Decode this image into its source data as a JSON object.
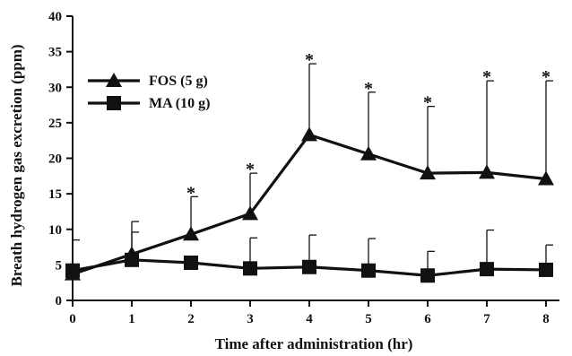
{
  "chart_data": {
    "type": "line",
    "xlabel": "Time after administration (hr)",
    "ylabel": "Breath hydrogen gas excretion (ppm)",
    "xlim": [
      0,
      8
    ],
    "ylim": [
      0,
      40
    ],
    "x_ticks": [
      "0",
      "1",
      "2",
      "3",
      "4",
      "5",
      "6",
      "7",
      "8"
    ],
    "y_ticks": [
      "0",
      "5",
      "10",
      "15",
      "20",
      "25",
      "30",
      "35",
      "40"
    ],
    "x": [
      0,
      1,
      2,
      3,
      4,
      5,
      6,
      7,
      8
    ],
    "grid": false,
    "legend_position": "top-left",
    "series": [
      {
        "name": "FOS (5 g)",
        "marker": "triangle",
        "color": "#111111",
        "values": [
          3.7,
          6.5,
          9.3,
          12.2,
          23.3,
          20.6,
          17.9,
          18.0,
          17.1
        ],
        "error_upper": [
          4.7,
          11.1,
          14.6,
          17.9,
          33.3,
          29.3,
          27.3,
          30.9,
          30.9
        ],
        "significant": [
          false,
          false,
          true,
          true,
          true,
          true,
          true,
          true,
          true
        ],
        "significance_marker": "*"
      },
      {
        "name": "MA (10 g)",
        "marker": "square",
        "color": "#111111",
        "values": [
          4.2,
          5.7,
          5.3,
          4.5,
          4.7,
          4.2,
          3.5,
          4.4,
          4.3
        ],
        "error_upper": [
          8.5,
          9.6,
          5.3,
          8.8,
          9.2,
          8.7,
          6.9,
          9.9,
          7.8
        ]
      }
    ]
  }
}
